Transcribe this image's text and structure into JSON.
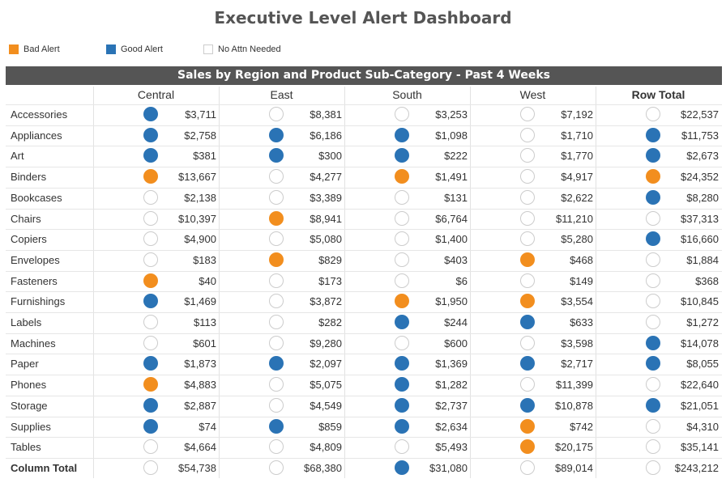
{
  "title": "Executive Level Alert Dashboard",
  "colors": {
    "bad": "#f28e1e",
    "good": "#2a73b5",
    "none_fill": "#ffffff",
    "none_border": "#cccccc"
  },
  "legend": [
    {
      "label": "Bad Alert",
      "status": "bad"
    },
    {
      "label": "Good Alert",
      "status": "good"
    },
    {
      "label": "No Attn Needed",
      "status": "none"
    }
  ],
  "chart_data": {
    "type": "table",
    "title": "Sales by Region and Product Sub-Category - Past 4 Weeks",
    "columns": [
      "Central",
      "East",
      "South",
      "West",
      "Row Total"
    ],
    "rows": [
      {
        "label": "Accessories",
        "cells": [
          {
            "value": "$3,711",
            "status": "good"
          },
          {
            "value": "$8,381",
            "status": "none"
          },
          {
            "value": "$3,253",
            "status": "none"
          },
          {
            "value": "$7,192",
            "status": "none"
          },
          {
            "value": "$22,537",
            "status": "none"
          }
        ]
      },
      {
        "label": "Appliances",
        "cells": [
          {
            "value": "$2,758",
            "status": "good"
          },
          {
            "value": "$6,186",
            "status": "good"
          },
          {
            "value": "$1,098",
            "status": "good"
          },
          {
            "value": "$1,710",
            "status": "none"
          },
          {
            "value": "$11,753",
            "status": "good"
          }
        ]
      },
      {
        "label": "Art",
        "cells": [
          {
            "value": "$381",
            "status": "good"
          },
          {
            "value": "$300",
            "status": "good"
          },
          {
            "value": "$222",
            "status": "good"
          },
          {
            "value": "$1,770",
            "status": "none"
          },
          {
            "value": "$2,673",
            "status": "good"
          }
        ]
      },
      {
        "label": "Binders",
        "cells": [
          {
            "value": "$13,667",
            "status": "bad"
          },
          {
            "value": "$4,277",
            "status": "none"
          },
          {
            "value": "$1,491",
            "status": "bad"
          },
          {
            "value": "$4,917",
            "status": "none"
          },
          {
            "value": "$24,352",
            "status": "bad"
          }
        ]
      },
      {
        "label": "Bookcases",
        "cells": [
          {
            "value": "$2,138",
            "status": "none"
          },
          {
            "value": "$3,389",
            "status": "none"
          },
          {
            "value": "$131",
            "status": "none"
          },
          {
            "value": "$2,622",
            "status": "none"
          },
          {
            "value": "$8,280",
            "status": "good"
          }
        ]
      },
      {
        "label": "Chairs",
        "cells": [
          {
            "value": "$10,397",
            "status": "none"
          },
          {
            "value": "$8,941",
            "status": "bad"
          },
          {
            "value": "$6,764",
            "status": "none"
          },
          {
            "value": "$11,210",
            "status": "none"
          },
          {
            "value": "$37,313",
            "status": "none"
          }
        ]
      },
      {
        "label": "Copiers",
        "cells": [
          {
            "value": "$4,900",
            "status": "none"
          },
          {
            "value": "$5,080",
            "status": "none"
          },
          {
            "value": "$1,400",
            "status": "none"
          },
          {
            "value": "$5,280",
            "status": "none"
          },
          {
            "value": "$16,660",
            "status": "good"
          }
        ]
      },
      {
        "label": "Envelopes",
        "cells": [
          {
            "value": "$183",
            "status": "none"
          },
          {
            "value": "$829",
            "status": "bad"
          },
          {
            "value": "$403",
            "status": "none"
          },
          {
            "value": "$468",
            "status": "bad"
          },
          {
            "value": "$1,884",
            "status": "none"
          }
        ]
      },
      {
        "label": "Fasteners",
        "cells": [
          {
            "value": "$40",
            "status": "bad"
          },
          {
            "value": "$173",
            "status": "none"
          },
          {
            "value": "$6",
            "status": "none"
          },
          {
            "value": "$149",
            "status": "none"
          },
          {
            "value": "$368",
            "status": "none"
          }
        ]
      },
      {
        "label": "Furnishings",
        "cells": [
          {
            "value": "$1,469",
            "status": "good"
          },
          {
            "value": "$3,872",
            "status": "none"
          },
          {
            "value": "$1,950",
            "status": "bad"
          },
          {
            "value": "$3,554",
            "status": "bad"
          },
          {
            "value": "$10,845",
            "status": "none"
          }
        ]
      },
      {
        "label": "Labels",
        "cells": [
          {
            "value": "$113",
            "status": "none"
          },
          {
            "value": "$282",
            "status": "none"
          },
          {
            "value": "$244",
            "status": "good"
          },
          {
            "value": "$633",
            "status": "good"
          },
          {
            "value": "$1,272",
            "status": "none"
          }
        ]
      },
      {
        "label": "Machines",
        "cells": [
          {
            "value": "$601",
            "status": "none"
          },
          {
            "value": "$9,280",
            "status": "none"
          },
          {
            "value": "$600",
            "status": "none"
          },
          {
            "value": "$3,598",
            "status": "none"
          },
          {
            "value": "$14,078",
            "status": "good"
          }
        ]
      },
      {
        "label": "Paper",
        "cells": [
          {
            "value": "$1,873",
            "status": "good"
          },
          {
            "value": "$2,097",
            "status": "good"
          },
          {
            "value": "$1,369",
            "status": "good"
          },
          {
            "value": "$2,717",
            "status": "good"
          },
          {
            "value": "$8,055",
            "status": "good"
          }
        ]
      },
      {
        "label": "Phones",
        "cells": [
          {
            "value": "$4,883",
            "status": "bad"
          },
          {
            "value": "$5,075",
            "status": "none"
          },
          {
            "value": "$1,282",
            "status": "good"
          },
          {
            "value": "$11,399",
            "status": "none"
          },
          {
            "value": "$22,640",
            "status": "none"
          }
        ]
      },
      {
        "label": "Storage",
        "cells": [
          {
            "value": "$2,887",
            "status": "good"
          },
          {
            "value": "$4,549",
            "status": "none"
          },
          {
            "value": "$2,737",
            "status": "good"
          },
          {
            "value": "$10,878",
            "status": "good"
          },
          {
            "value": "$21,051",
            "status": "good"
          }
        ]
      },
      {
        "label": "Supplies",
        "cells": [
          {
            "value": "$74",
            "status": "good"
          },
          {
            "value": "$859",
            "status": "good"
          },
          {
            "value": "$2,634",
            "status": "good"
          },
          {
            "value": "$742",
            "status": "bad"
          },
          {
            "value": "$4,310",
            "status": "none"
          }
        ]
      },
      {
        "label": "Tables",
        "cells": [
          {
            "value": "$4,664",
            "status": "none"
          },
          {
            "value": "$4,809",
            "status": "none"
          },
          {
            "value": "$5,493",
            "status": "none"
          },
          {
            "value": "$20,175",
            "status": "bad"
          },
          {
            "value": "$35,141",
            "status": "none"
          }
        ]
      },
      {
        "label": "Column Total",
        "bold": true,
        "cells": [
          {
            "value": "$54,738",
            "status": "none"
          },
          {
            "value": "$68,380",
            "status": "none"
          },
          {
            "value": "$31,080",
            "status": "good"
          },
          {
            "value": "$89,014",
            "status": "none"
          },
          {
            "value": "$243,212",
            "status": "none"
          }
        ]
      }
    ]
  }
}
